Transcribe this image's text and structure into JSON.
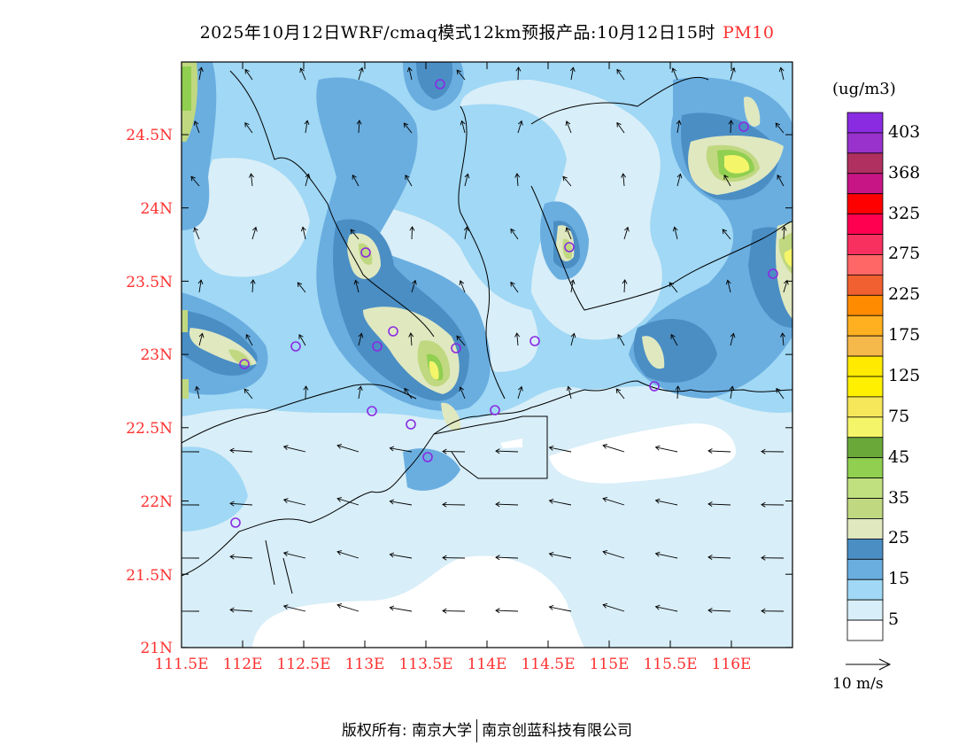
{
  "title": {
    "text": "2025年10月12日WRF/cmaq模式12km预报产品:10月12日15时",
    "variable": "PM10"
  },
  "axes": {
    "lat_labels": [
      "24.5N",
      "24N",
      "23.5N",
      "23N",
      "22.5N",
      "22N",
      "21.5N",
      "21N"
    ],
    "lon_labels": [
      "111.5E",
      "112E",
      "112.5E",
      "113E",
      "113.5E",
      "114E",
      "114.5E",
      "115E",
      "115.5E",
      "116E"
    ]
  },
  "colorbar": {
    "unit": "(ug/m3)",
    "labels": [
      "403",
      "368",
      "325",
      "275",
      "225",
      "175",
      "125",
      "75",
      "45",
      "35",
      "25",
      "15",
      "5"
    ],
    "colors": [
      "#8a2be2",
      "#9932cc",
      "#b03060",
      "#c71585",
      "#ff0000",
      "#ff0050",
      "#f83060",
      "#ff6666",
      "#f06030",
      "#ff8c00",
      "#ffb020",
      "#f5b84a",
      "#ffea00",
      "#fff000",
      "#f5e65a",
      "#f5f56a",
      "#6aa83a",
      "#90cf50",
      "#c0e080",
      "#c0d880",
      "#e0e8c0",
      "#4a8ec4",
      "#6aaee0",
      "#a0d8f5",
      "#d8eef8",
      "#ffffff"
    ]
  },
  "wind_reference": {
    "label": "10 m/s"
  },
  "footer": {
    "left": "版权所有: 南京大学",
    "right": "南京创蓝科技有限公司"
  }
}
